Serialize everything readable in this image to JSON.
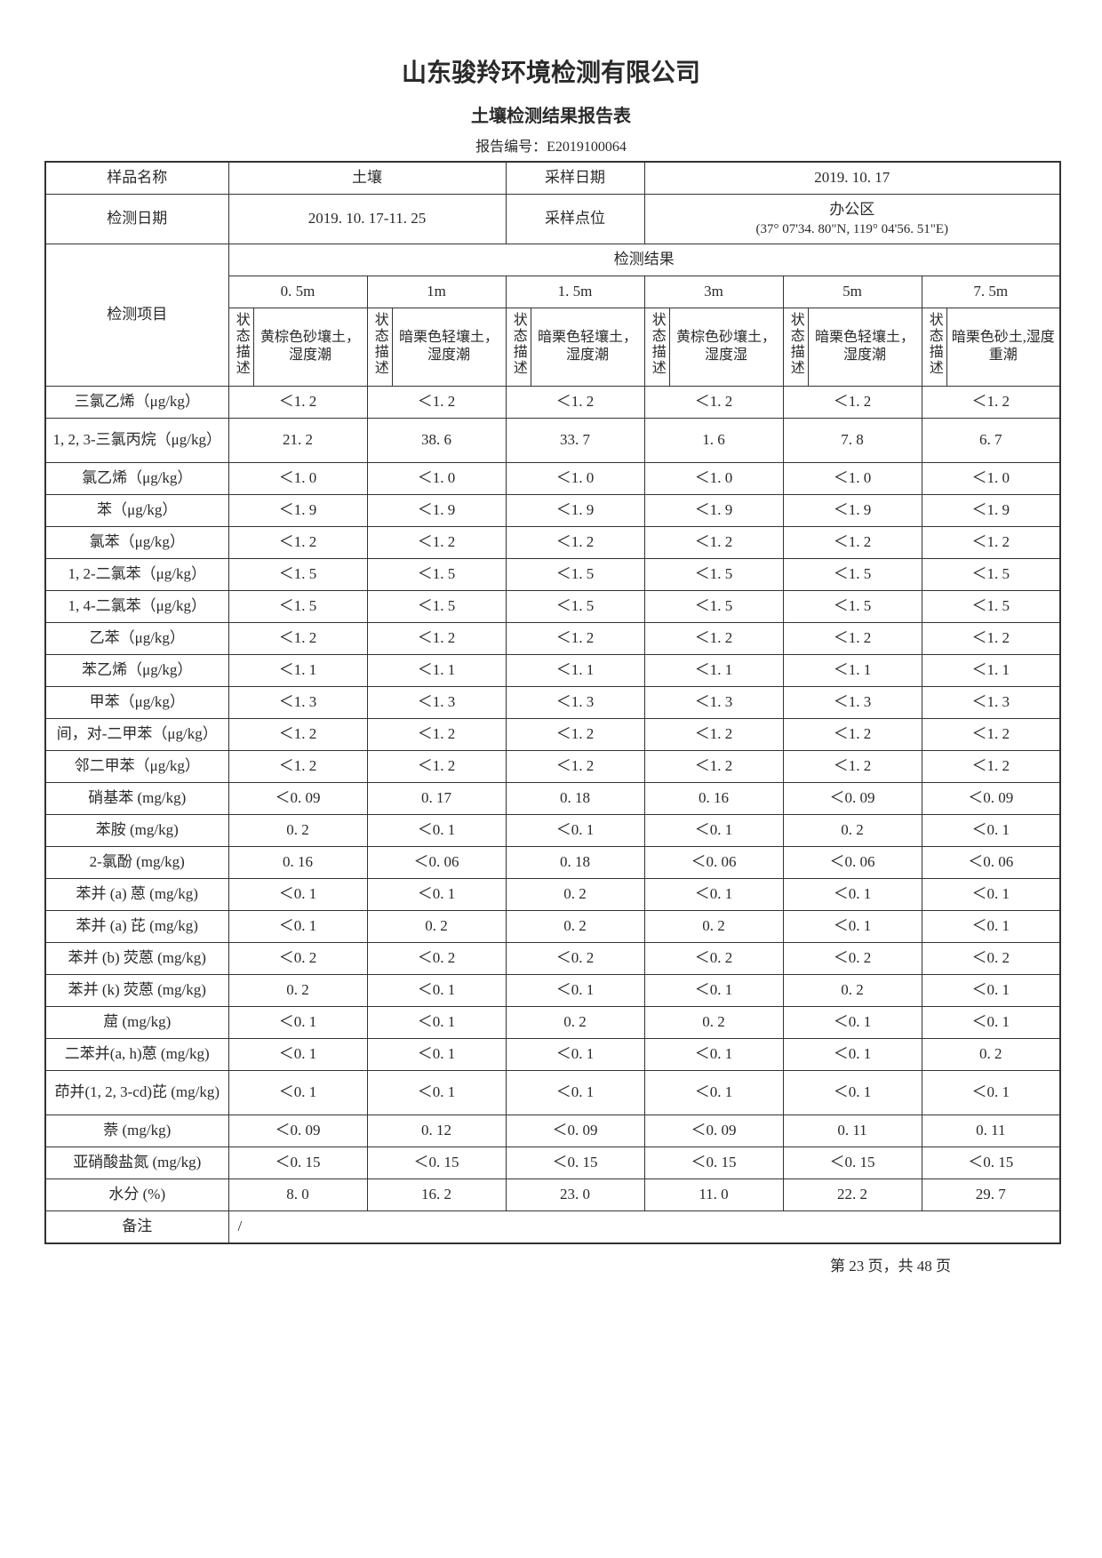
{
  "company": "山东骏羚环境检测有限公司",
  "tableTitle": "土壤检测结果报告表",
  "reportNoLabel": "报告编号：",
  "reportNo": "E2019100064",
  "labels": {
    "sampleName": "样品名称",
    "sampleNameVal": "土壤",
    "samplingDate": "采样日期",
    "samplingDateVal": "2019. 10. 17",
    "testDate": "检测日期",
    "testDateVal": "2019. 10. 17-11. 25",
    "samplingPoint": "采样点位",
    "samplingPointVal": "办公区",
    "samplingCoord": "(37° 07'34. 80\"N, 119° 04'56. 51\"E)",
    "testItem": "检测项目",
    "testResult": "检测结果",
    "stateDesc": "状态描述",
    "remark": "备注",
    "remarkVal": "/"
  },
  "depths": [
    "0. 5m",
    "1m",
    "1. 5m",
    "3m",
    "5m",
    "7. 5m"
  ],
  "descriptions": [
    "黄棕色砂壤土，湿度潮",
    "暗栗色轻壤土，湿度潮",
    "暗栗色轻壤土，湿度潮",
    "黄棕色砂壤土，湿度湿",
    "暗栗色轻壤土，湿度潮",
    "暗栗色砂土,湿度重潮"
  ],
  "rows": [
    {
      "name": "三氯乙烯（μg/kg）",
      "v": [
        "＜1. 2",
        "＜1. 2",
        "＜1. 2",
        "＜1. 2",
        "＜1. 2",
        "＜1. 2"
      ]
    },
    {
      "name": "1, 2, 3-三氯丙烷（μg/kg）",
      "v": [
        "21. 2",
        "38. 6",
        "33. 7",
        "1. 6",
        "7. 8",
        "6. 7"
      ],
      "tall": true
    },
    {
      "name": "氯乙烯（μg/kg）",
      "v": [
        "＜1. 0",
        "＜1. 0",
        "＜1. 0",
        "＜1. 0",
        "＜1. 0",
        "＜1. 0"
      ]
    },
    {
      "name": "苯（μg/kg）",
      "v": [
        "＜1. 9",
        "＜1. 9",
        "＜1. 9",
        "＜1. 9",
        "＜1. 9",
        "＜1. 9"
      ]
    },
    {
      "name": "氯苯（μg/kg）",
      "v": [
        "＜1. 2",
        "＜1. 2",
        "＜1. 2",
        "＜1. 2",
        "＜1. 2",
        "＜1. 2"
      ]
    },
    {
      "name": "1, 2-二氯苯（μg/kg）",
      "v": [
        "＜1. 5",
        "＜1. 5",
        "＜1. 5",
        "＜1. 5",
        "＜1. 5",
        "＜1. 5"
      ]
    },
    {
      "name": "1, 4-二氯苯（μg/kg）",
      "v": [
        "＜1. 5",
        "＜1. 5",
        "＜1. 5",
        "＜1. 5",
        "＜1. 5",
        "＜1. 5"
      ]
    },
    {
      "name": "乙苯（μg/kg）",
      "v": [
        "＜1. 2",
        "＜1. 2",
        "＜1. 2",
        "＜1. 2",
        "＜1. 2",
        "＜1. 2"
      ]
    },
    {
      "name": "苯乙烯（μg/kg）",
      "v": [
        "＜1. 1",
        "＜1. 1",
        "＜1. 1",
        "＜1. 1",
        "＜1. 1",
        "＜1. 1"
      ]
    },
    {
      "name": "甲苯（μg/kg）",
      "v": [
        "＜1. 3",
        "＜1. 3",
        "＜1. 3",
        "＜1. 3",
        "＜1. 3",
        "＜1. 3"
      ]
    },
    {
      "name": "间，对-二甲苯（μg/kg）",
      "v": [
        "＜1. 2",
        "＜1. 2",
        "＜1. 2",
        "＜1. 2",
        "＜1. 2",
        "＜1. 2"
      ]
    },
    {
      "name": "邻二甲苯（μg/kg）",
      "v": [
        "＜1. 2",
        "＜1. 2",
        "＜1. 2",
        "＜1. 2",
        "＜1. 2",
        "＜1. 2"
      ]
    },
    {
      "name": "硝基苯 (mg/kg)",
      "v": [
        "＜0. 09",
        "0. 17",
        "0. 18",
        "0. 16",
        "＜0. 09",
        "＜0. 09"
      ]
    },
    {
      "name": "苯胺 (mg/kg)",
      "v": [
        "0. 2",
        "＜0. 1",
        "＜0. 1",
        "＜0. 1",
        "0. 2",
        "＜0. 1"
      ]
    },
    {
      "name": "2-氯酚 (mg/kg)",
      "v": [
        "0. 16",
        "＜0. 06",
        "0. 18",
        "＜0. 06",
        "＜0. 06",
        "＜0. 06"
      ]
    },
    {
      "name": "苯并 (a) 蒽 (mg/kg)",
      "v": [
        "＜0. 1",
        "＜0. 1",
        "0. 2",
        "＜0. 1",
        "＜0. 1",
        "＜0. 1"
      ]
    },
    {
      "name": "苯并 (a) 芘 (mg/kg)",
      "v": [
        "＜0. 1",
        "0. 2",
        "0. 2",
        "0. 2",
        "＜0. 1",
        "＜0. 1"
      ]
    },
    {
      "name": "苯并 (b) 荧蒽 (mg/kg)",
      "v": [
        "＜0. 2",
        "＜0. 2",
        "＜0. 2",
        "＜0. 2",
        "＜0. 2",
        "＜0. 2"
      ]
    },
    {
      "name": "苯并 (k) 荧蒽 (mg/kg)",
      "v": [
        "0. 2",
        "＜0. 1",
        "＜0. 1",
        "＜0. 1",
        "0. 2",
        "＜0. 1"
      ]
    },
    {
      "name": "䓛 (mg/kg)",
      "v": [
        "＜0. 1",
        "＜0. 1",
        "0. 2",
        "0. 2",
        "＜0. 1",
        "＜0. 1"
      ]
    },
    {
      "name": "二苯并(a, h)蒽 (mg/kg)",
      "v": [
        "＜0. 1",
        "＜0. 1",
        "＜0. 1",
        "＜0. 1",
        "＜0. 1",
        "0. 2"
      ]
    },
    {
      "name": "茚并(1, 2, 3-cd)芘 (mg/kg)",
      "v": [
        "＜0. 1",
        "＜0. 1",
        "＜0. 1",
        "＜0. 1",
        "＜0. 1",
        "＜0. 1"
      ],
      "tall": true
    },
    {
      "name": "萘 (mg/kg)",
      "v": [
        "＜0. 09",
        "0. 12",
        "＜0. 09",
        "＜0. 09",
        "0. 11",
        "0. 11"
      ]
    },
    {
      "name": "亚硝酸盐氮 (mg/kg)",
      "v": [
        "＜0. 15",
        "＜0. 15",
        "＜0. 15",
        "＜0. 15",
        "＜0. 15",
        "＜0. 15"
      ]
    },
    {
      "name": "水分 (%)",
      "v": [
        "8. 0",
        "16. 2",
        "23. 0",
        "11. 0",
        "22. 2",
        "29. 7"
      ]
    }
  ],
  "footer": "第 23 页，共 48 页"
}
